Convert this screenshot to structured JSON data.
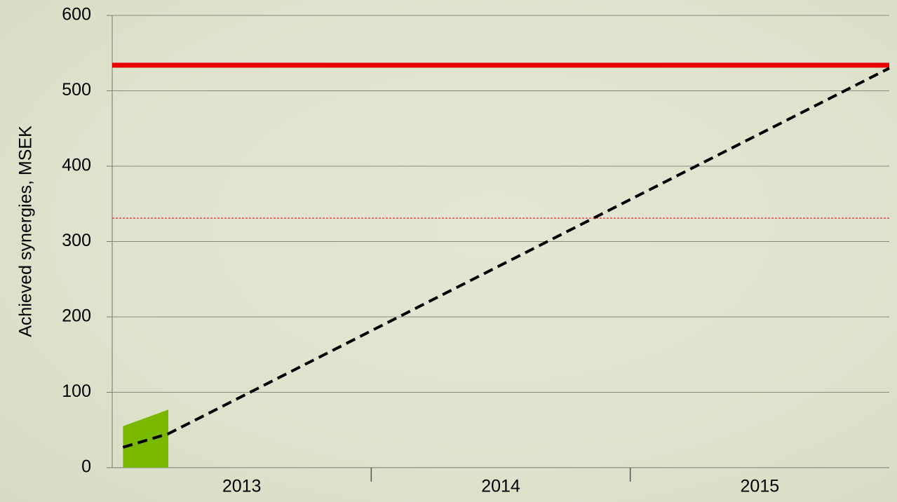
{
  "chart_data": {
    "type": "line",
    "y_label": "Achieved synergies, MSEK",
    "categories": [
      "2013",
      "2014",
      "2015"
    ],
    "xlim": [
      0,
      36
    ],
    "xticks": [
      12,
      24
    ],
    "ylim": [
      0,
      600
    ],
    "yticks": [
      0,
      100,
      200,
      300,
      400,
      500,
      600
    ],
    "grid": true,
    "series": [
      {
        "color": "#e60000",
        "style": "solid",
        "x": [
          0,
          36
        ],
        "values": [
          534,
          534
        ]
      },
      {
        "color": "#e60000",
        "style": "dotted",
        "x": [
          0,
          36
        ],
        "values": [
          331,
          331
        ]
      },
      {
        "color": "#7ab800",
        "style": "area",
        "x": [
          0.5,
          2.6
        ],
        "values": [
          55,
          77
        ]
      },
      {
        "color": "#000000",
        "style": "dashed",
        "x": [
          0.5,
          2.6,
          36
        ],
        "values": [
          27,
          45,
          530
        ]
      }
    ]
  }
}
